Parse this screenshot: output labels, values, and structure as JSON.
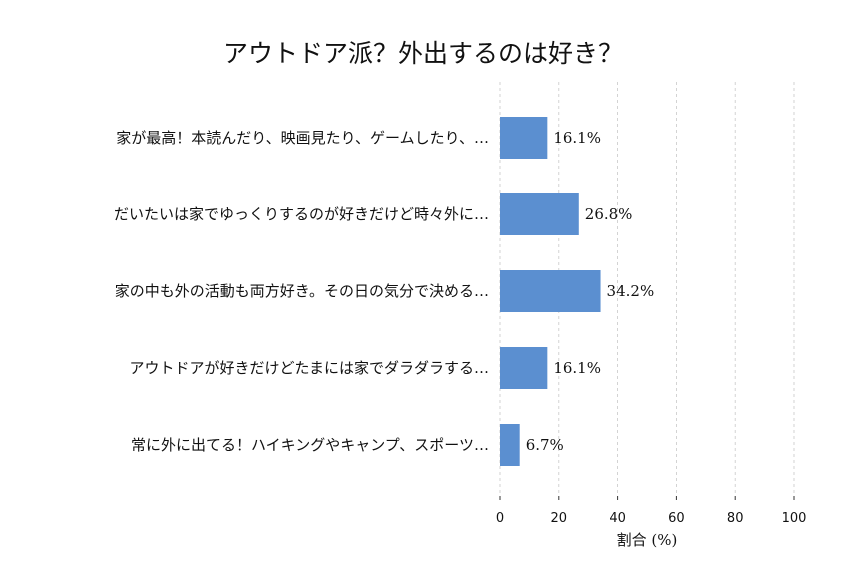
{
  "chart_data": {
    "type": "bar",
    "orientation": "horizontal",
    "title": "アウトドア派？外出するのは好き？",
    "xlabel": "割合 (%)",
    "ylabel": "",
    "xlim": [
      0,
      100
    ],
    "x_ticks": [
      "0",
      "20",
      "40",
      "60",
      "80",
      "100"
    ],
    "grid": "vertical dashed",
    "bar_color": "#5b8fd0",
    "categories": [
      "家が最高！本読んだり、映画見たり、ゲームしたり、…",
      "だいたいは家でゆっくりするのが好きだけど時々外に…",
      "家の中も外の活動も両方好き。その日の気分で決める…",
      "アウトドアが好きだけどたまには家でダラダラする…",
      "常に外に出てる！ハイキングやキャンプ、スポーツ…"
    ],
    "values": [
      16.1,
      26.8,
      34.2,
      16.1,
      6.7
    ],
    "value_labels": [
      "16.1%",
      "26.8%",
      "34.2%",
      "16.1%",
      "6.7%"
    ]
  }
}
